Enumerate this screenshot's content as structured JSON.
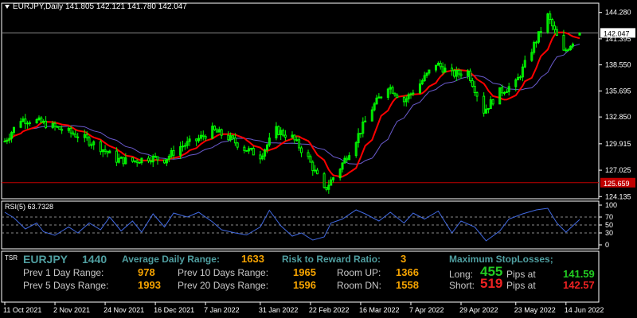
{
  "header": {
    "symbol_line": "EURJPY,Daily  141.805 142.121 141.780 142.047"
  },
  "rsi_label": "RSI(5) 63.7328",
  "tsr_tag": "TSR",
  "panel": {
    "symbol": "EURJPY",
    "period": "1440",
    "adr_label": "Average Daily Range:",
    "adr_value": "1633",
    "rr_label": "Risk to Reward Ratio:",
    "rr_value": "3",
    "maxsl_label": "Maximum StopLosses;",
    "prev1_label": "Prev 1 Day Range:",
    "prev1_value": "978",
    "prev10_label": "Prev 10 Days Range:",
    "prev10_value": "1965",
    "roomup_label": "Room UP:",
    "roomup_value": "1366",
    "prev5_label": "Prev 5 Days Range:",
    "prev5_value": "1993",
    "prev20_label": "Prev 20 Days Range:",
    "prev20_value": "1596",
    "roomdn_label": "Room DN:",
    "roomdn_value": "1558",
    "long_label": "Long:",
    "long_pips": "455",
    "long_pips_at": "Pips at",
    "long_price": "141.59",
    "short_label": "Short:",
    "short_pips": "519",
    "short_pips_at": "Pips at",
    "short_price": "142.57"
  },
  "colors": {
    "background": "#000000",
    "bull_candle": "#00ff00",
    "fast_ma": "#ff0000",
    "slow_ma": "#6a5acd",
    "rsi_line": "#4169e1",
    "level_line": "#c00000"
  },
  "chart_data": [
    {
      "type": "candlestick",
      "title": "EURJPY,Daily",
      "ohlc_last": {
        "open": 141.805,
        "high": 142.121,
        "low": 141.78,
        "close": 142.047
      },
      "price_ticks": [
        "144.280",
        "141.395",
        "138.550",
        "135.695",
        "132.850",
        "129.915",
        "127.025",
        "124.135"
      ],
      "ylim": [
        123.9,
        145.3
      ],
      "date_ticks": [
        "11 Oct 2021",
        "2 Nov 2021",
        "24 Nov 2021",
        "16 Dec 2021",
        "7 Jan 2022",
        "31 Jan 2022",
        "22 Feb 2022",
        "16 Mar 2022",
        "7 Apr 2022",
        "29 Apr 2022",
        "23 May 2022",
        "14 Jun 2022"
      ],
      "current_price_label": "142.047",
      "horizontal_level": 125.659,
      "horizontal_level_label": "125.659",
      "close_path": [
        [
          "2021-10-11",
          130.2
        ],
        [
          "2021-10-18",
          132.6
        ],
        [
          "2021-10-25",
          132.4
        ],
        [
          "2021-11-01",
          131.8
        ],
        [
          "2021-11-08",
          131.2
        ],
        [
          "2021-11-15",
          130.5
        ],
        [
          "2021-11-22",
          129.5
        ],
        [
          "2021-11-29",
          128.2
        ],
        [
          "2021-12-06",
          128.0
        ],
        [
          "2021-12-13",
          128.4
        ],
        [
          "2021-12-20",
          128.2
        ],
        [
          "2021-12-27",
          129.6
        ],
        [
          "2022-01-03",
          130.3
        ],
        [
          "2022-01-10",
          131.4
        ],
        [
          "2022-01-17",
          130.6
        ],
        [
          "2022-01-24",
          129.4
        ],
        [
          "2022-01-31",
          128.6
        ],
        [
          "2022-02-07",
          131.4
        ],
        [
          "2022-02-14",
          130.6
        ],
        [
          "2022-02-21",
          128.3
        ],
        [
          "2022-02-28",
          124.8
        ],
        [
          "2022-03-07",
          127.3
        ],
        [
          "2022-03-14",
          130.4
        ],
        [
          "2022-03-21",
          133.8
        ],
        [
          "2022-03-28",
          136.3
        ],
        [
          "2022-04-04",
          134.6
        ],
        [
          "2022-04-11",
          136.5
        ],
        [
          "2022-04-18",
          138.7
        ],
        [
          "2022-04-25",
          137.5
        ],
        [
          "2022-05-02",
          137.8
        ],
        [
          "2022-05-09",
          133.5
        ],
        [
          "2022-05-16",
          135.6
        ],
        [
          "2022-05-23",
          136.5
        ],
        [
          "2022-05-30",
          140.2
        ],
        [
          "2022-06-06",
          143.9
        ],
        [
          "2022-06-13",
          139.9
        ],
        [
          "2022-06-20",
          142.047
        ]
      ],
      "series": [
        {
          "name": "fast MA",
          "color": "#ff0000"
        },
        {
          "name": "slow MA",
          "color": "#6a5acd"
        }
      ]
    },
    {
      "type": "line",
      "title": "RSI(5) 63.7328",
      "yticks": [
        100,
        70,
        50,
        30,
        0
      ],
      "ylim": [
        0,
        100
      ],
      "levels": [
        70,
        50,
        30
      ],
      "rsi_path": [
        [
          "2021-10-11",
          82
        ],
        [
          "2021-10-15",
          68
        ],
        [
          "2021-10-20",
          40
        ],
        [
          "2021-10-25",
          55
        ],
        [
          "2021-10-28",
          33
        ],
        [
          "2021-11-02",
          24
        ],
        [
          "2021-11-08",
          45
        ],
        [
          "2021-11-12",
          30
        ],
        [
          "2021-11-17",
          55
        ],
        [
          "2021-11-22",
          38
        ],
        [
          "2021-11-26",
          70
        ],
        [
          "2021-12-01",
          35
        ],
        [
          "2021-12-06",
          60
        ],
        [
          "2021-12-10",
          32
        ],
        [
          "2021-12-15",
          78
        ],
        [
          "2021-12-20",
          45
        ],
        [
          "2021-12-24",
          80
        ],
        [
          "2021-12-30",
          70
        ],
        [
          "2022-01-04",
          82
        ],
        [
          "2022-01-10",
          58
        ],
        [
          "2022-01-14",
          38
        ],
        [
          "2022-01-20",
          30
        ],
        [
          "2022-01-25",
          25
        ],
        [
          "2022-01-31",
          45
        ],
        [
          "2022-02-04",
          87
        ],
        [
          "2022-02-09",
          48
        ],
        [
          "2022-02-14",
          22
        ],
        [
          "2022-02-18",
          30
        ],
        [
          "2022-02-23",
          12
        ],
        [
          "2022-02-28",
          20
        ],
        [
          "2022-03-03",
          55
        ],
        [
          "2022-03-08",
          65
        ],
        [
          "2022-03-14",
          88
        ],
        [
          "2022-03-18",
          78
        ],
        [
          "2022-03-24",
          60
        ],
        [
          "2022-03-29",
          82
        ],
        [
          "2022-04-04",
          55
        ],
        [
          "2022-04-08",
          80
        ],
        [
          "2022-04-13",
          65
        ],
        [
          "2022-04-19",
          85
        ],
        [
          "2022-04-25",
          30
        ],
        [
          "2022-04-29",
          60
        ],
        [
          "2022-05-05",
          45
        ],
        [
          "2022-05-10",
          10
        ],
        [
          "2022-05-16",
          35
        ],
        [
          "2022-05-20",
          65
        ],
        [
          "2022-05-26",
          78
        ],
        [
          "2022-06-01",
          88
        ],
        [
          "2022-06-06",
          92
        ],
        [
          "2022-06-10",
          55
        ],
        [
          "2022-06-14",
          32
        ],
        [
          "2022-06-17",
          48
        ],
        [
          "2022-06-20",
          63.7
        ]
      ]
    }
  ]
}
